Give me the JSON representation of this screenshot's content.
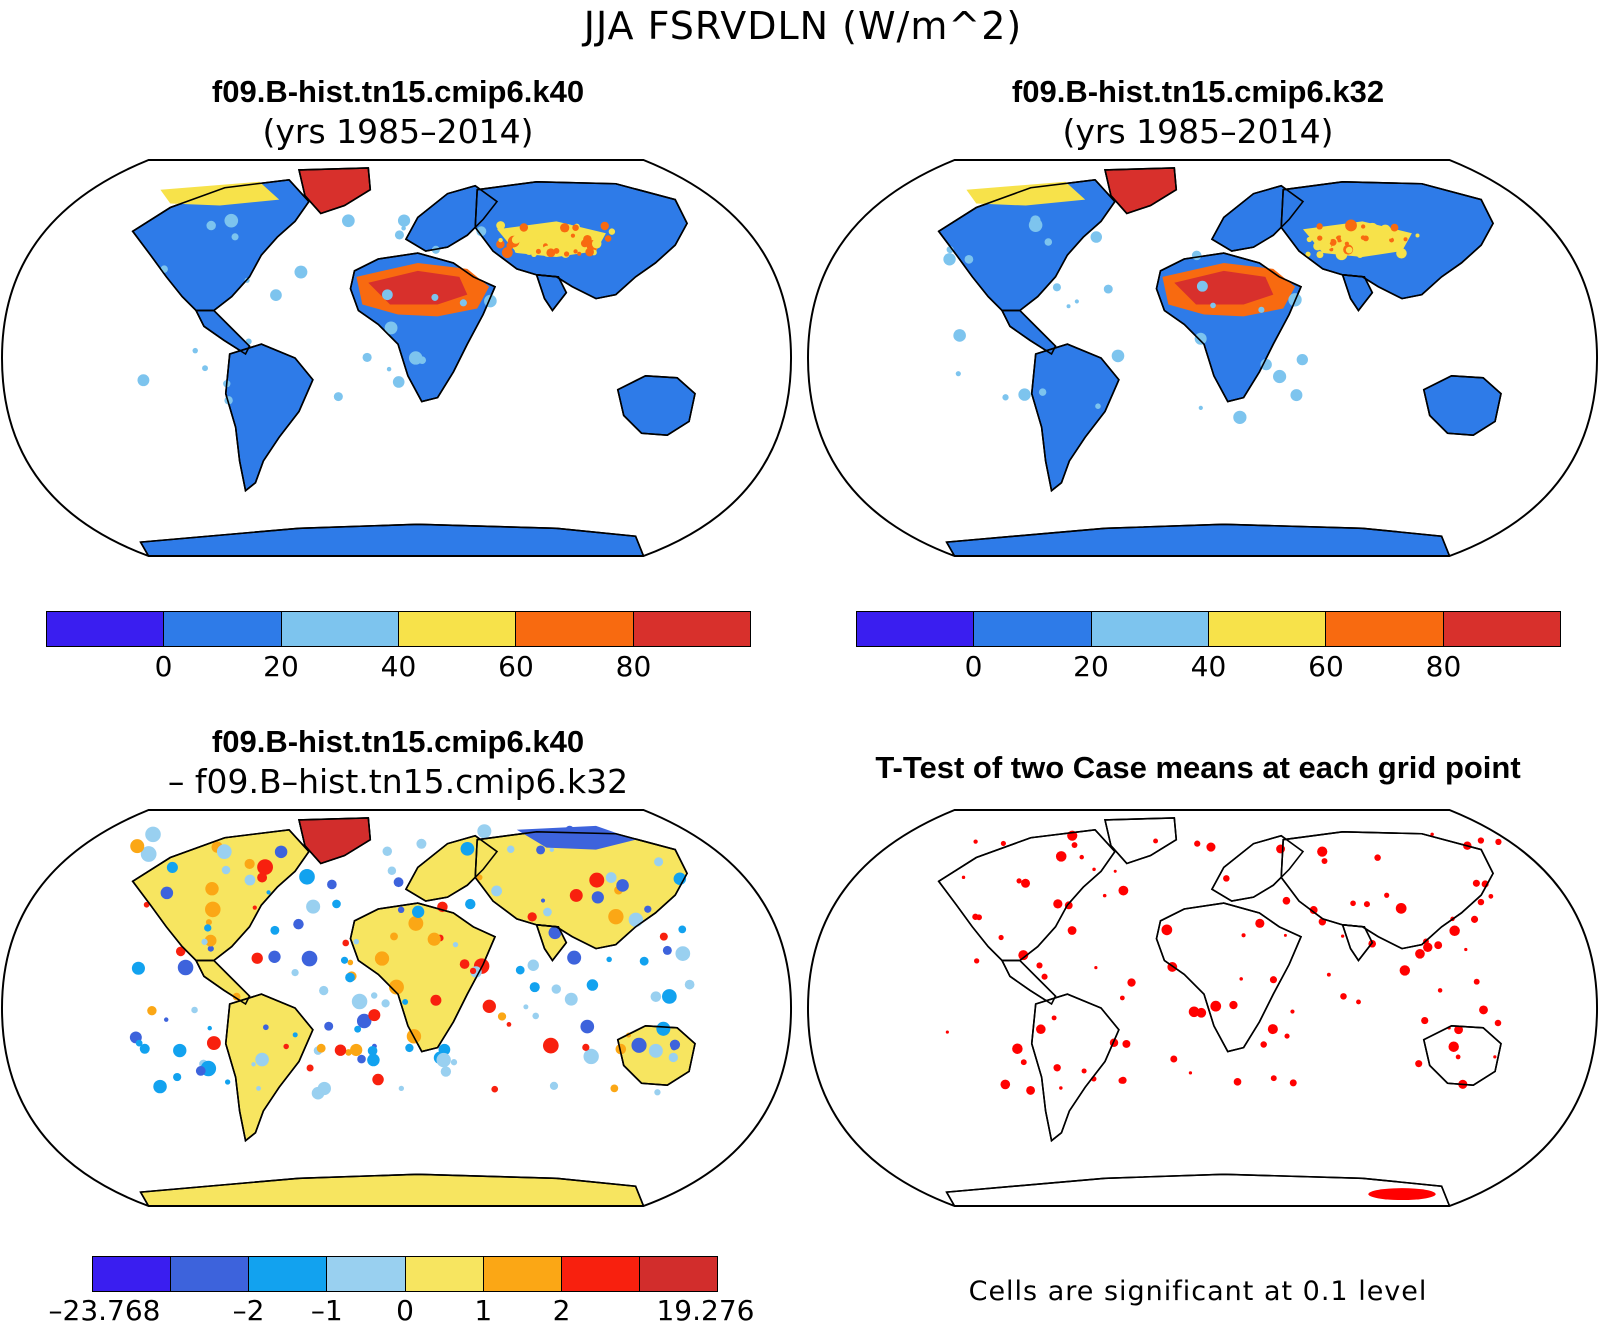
{
  "figure": {
    "title": "JJA FSRVDLN (W/m^2)"
  },
  "panels": {
    "top_left": {
      "title": "f09.B-hist.tn15.cmip6.k40",
      "subtitle": "(yrs 1985–2014)"
    },
    "top_right": {
      "title": "f09.B-hist.tn15.cmip6.k32",
      "subtitle": "(yrs 1985–2014)"
    },
    "bottom_left": {
      "title": "f09.B-hist.tn15.cmip6.k40",
      "subtitle": "– f09.B–hist.tn15.cmip6.k32"
    },
    "bottom_right": {
      "title": "T-Test of two Case means at each grid point",
      "note": "Cells are significant at 0.1 level"
    }
  },
  "colorbars": {
    "case": {
      "colors": [
        "#3a1ef0",
        "#2e7be8",
        "#7dc4ee",
        "#f7e24a",
        "#f86a10",
        "#d8302c"
      ],
      "labels": [
        "0",
        "20",
        "40",
        "60",
        "80"
      ]
    },
    "diff": {
      "colors": [
        "#3a1ef0",
        "#3d63dc",
        "#12a2ef",
        "#99d0f0",
        "#f7e560",
        "#fba715",
        "#f8200e",
        "#d22d2c"
      ],
      "labels": [
        "–23.768",
        "–2",
        "–1",
        "0",
        "1",
        "2",
        "19.276"
      ]
    }
  },
  "significance_color": "#ff0000",
  "land_color": "#2e7be8"
}
